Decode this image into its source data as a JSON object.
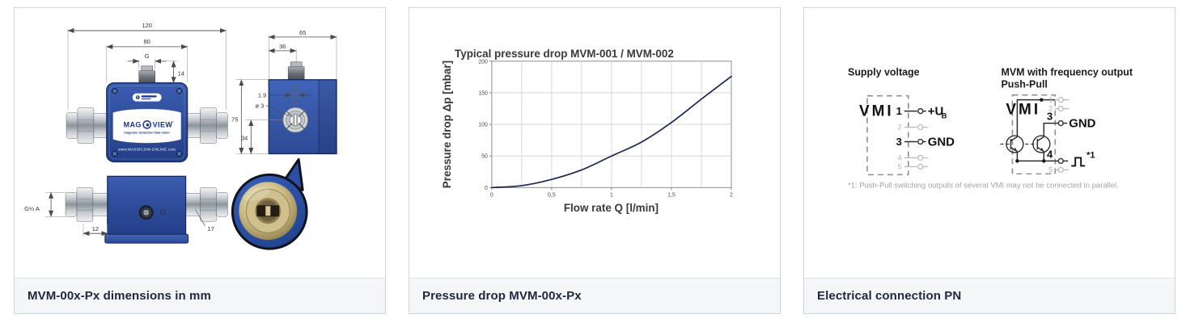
{
  "cards": {
    "dimensions": {
      "caption": "MVM-00x-Px dimensions in mm"
    },
    "pressure": {
      "caption": "Pressure drop MVM-00x-Px"
    },
    "electrical": {
      "caption": "Electrical connection PN"
    }
  },
  "device": {
    "brand_left": "MAG",
    "brand_right": "VIEW",
    "brand_tm": "™",
    "tagline": "magnetic inductive flow meter",
    "url": "www.MASSFLOW-ONLINE.com"
  },
  "dims": {
    "d120": "120",
    "d80": "80",
    "dG": "G",
    "d14": "14",
    "d65": "65",
    "d36": "36",
    "d75": "75",
    "d34": "34",
    "d19": "1.9",
    "dia3": "ø 3",
    "dG14": "G¼ A",
    "d12": "12",
    "d17": "17"
  },
  "chart_data": {
    "type": "line",
    "title": "Typical pressure drop MVM-001 / MVM-002",
    "xlabel": "Flow rate Q [l/min]",
    "ylabel": "Pressure drop Δp [mbar]",
    "series_name": "MVM-001 / MVM-002",
    "xlim": [
      0,
      2
    ],
    "ylim": [
      0,
      200
    ],
    "x": [
      0,
      0.25,
      0.5,
      0.75,
      1,
      1.25,
      1.5,
      1.75,
      2
    ],
    "y": [
      0,
      3,
      13,
      28,
      50,
      72,
      103,
      140,
      176
    ],
    "x_ticks": [
      {
        "v": 0,
        "label": "0"
      },
      {
        "v": 0.5,
        "label": "0,5"
      },
      {
        "v": 1,
        "label": "1"
      },
      {
        "v": 1.5,
        "label": "1,5"
      },
      {
        "v": 2,
        "label": "2"
      }
    ],
    "y_ticks": [
      {
        "v": 0,
        "label": "0"
      },
      {
        "v": 50,
        "label": "50"
      },
      {
        "v": 100,
        "label": "100"
      },
      {
        "v": 150,
        "label": "150"
      },
      {
        "v": 200,
        "label": "200"
      }
    ],
    "x_minor_step": 0.25,
    "grid": true,
    "legend": "none",
    "line_color": "#1b2557"
  },
  "electrical": {
    "left_title": "Supply voltage",
    "right_title_1": "MVM with frequency output",
    "right_title_2": "Push-Pull",
    "box_label": "VMI",
    "pins": {
      "p1": "1",
      "p2": "2",
      "p3": "3",
      "p4": "4",
      "p5": "5"
    },
    "ub": "+U",
    "ub_sub": "B",
    "gnd": "GND",
    "star1": "*1",
    "footnote": "*1: Push-Pull switching outputs of several VMI may not be connected in parallel."
  }
}
